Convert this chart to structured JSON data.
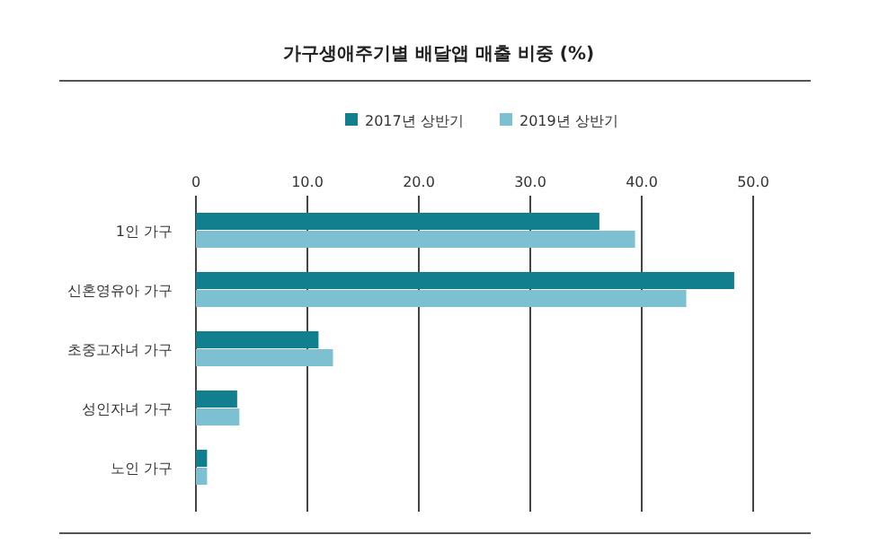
{
  "chart_data": {
    "type": "bar",
    "orientation": "horizontal",
    "title": "가구생애주기별 배달앱 매출 비중 (%)",
    "categories": [
      "1인 가구",
      "신혼영유아 가구",
      "초중고자녀 가구",
      "성인자녀 가구",
      "노인 가구"
    ],
    "series": [
      {
        "name": "2017년 상반기",
        "color": "#127f8e",
        "values": [
          36.2,
          48.3,
          11.0,
          3.7,
          1.0
        ]
      },
      {
        "name": "2019년 상반기",
        "color": "#7dc0d2",
        "values": [
          39.4,
          44.0,
          12.3,
          3.9,
          1.0
        ]
      }
    ],
    "xlim": [
      0,
      50
    ],
    "xticks": [
      {
        "value": 0,
        "label": "0"
      },
      {
        "value": 10,
        "label": "10.0"
      },
      {
        "value": 20,
        "label": "20.0"
      },
      {
        "value": 30,
        "label": "30.0"
      },
      {
        "value": 40,
        "label": "40.0"
      },
      {
        "value": 50,
        "label": "50.0"
      }
    ],
    "grid": "x",
    "legend": "top"
  }
}
